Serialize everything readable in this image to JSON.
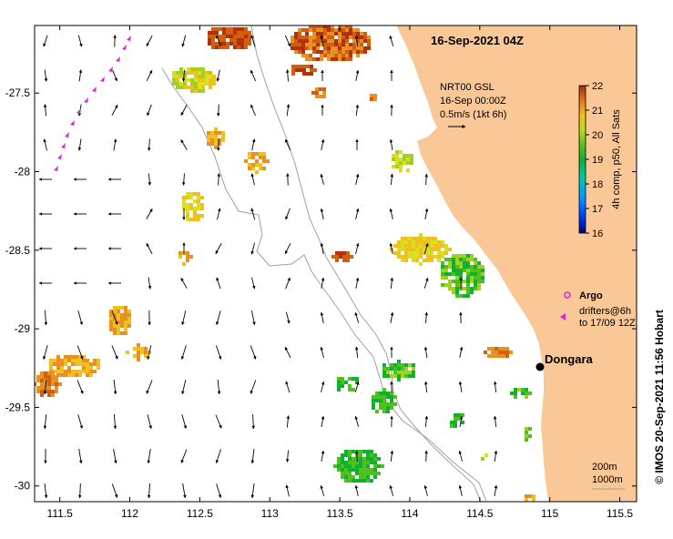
{
  "map": {
    "title": "16-Sep-2021 04Z",
    "credit": "© IMOS 20-Sep-2021 11:56 Hobart",
    "place": {
      "name": "Dongara",
      "lon": 114.93,
      "lat": -29.26
    },
    "x_ticks": [
      "111.5",
      "112",
      "112.5",
      "113",
      "113.5",
      "114",
      "114.5",
      "115",
      "115.5"
    ],
    "y_ticks": [
      "-27.5",
      "-28",
      "-28.5",
      "-29",
      "-29.5",
      "-30"
    ],
    "x_range": [
      111.32,
      115.62
    ],
    "y_range": [
      -30.1,
      -27.07
    ],
    "current_legend": {
      "line1": "NRT00 GSL",
      "line2": "16-Sep 00:00Z",
      "line3": "0.5m/s (1kt 6h)"
    },
    "colorbar": {
      "label": "4h comp, p50, All Sats",
      "ticks": [
        "22",
        "21",
        "20",
        "19",
        "18",
        "17",
        "16"
      ],
      "range": [
        16,
        22
      ],
      "colors": [
        "#000080",
        "#0040ff",
        "#00a0ff",
        "#00c8a0",
        "#10b030",
        "#50c020",
        "#a0d020",
        "#d8e020",
        "#f0c020",
        "#e89020",
        "#d06010",
        "#b03010"
      ]
    },
    "argo": {
      "label": "Argo",
      "drifters_line1": "drifters@6h",
      "drifters_line2": "to 17/09 12Z",
      "color": "#e020e0"
    },
    "isobaths": {
      "line1": "200m",
      "line2": "1000m"
    },
    "land_color": "#f9c896"
  }
}
